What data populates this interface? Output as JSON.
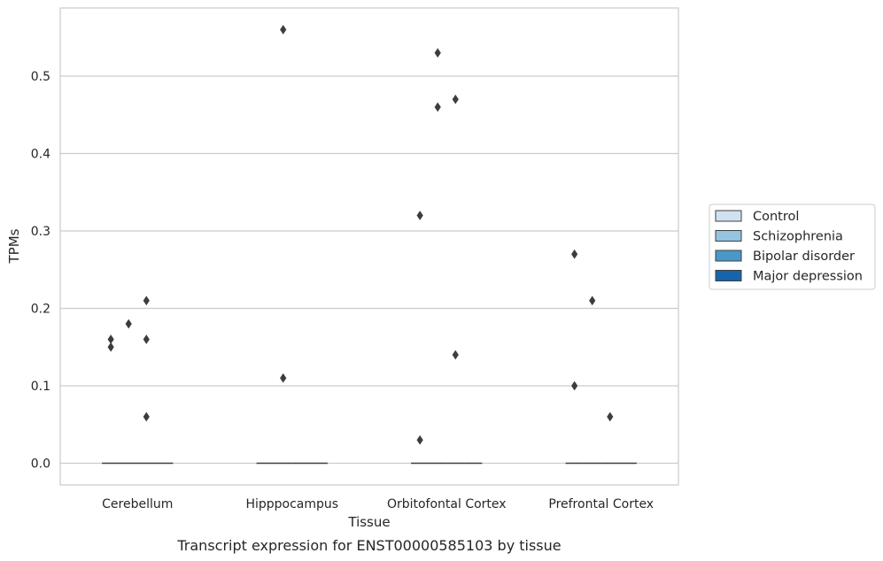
{
  "caption": "Transcript expression for ENST00000585103 by tissue",
  "chart_data": {
    "type": "boxplot",
    "title": "",
    "xlabel": "Tissue",
    "ylabel": "TPMs",
    "ylim": [
      -0.028,
      0.588
    ],
    "yticks": [
      0.0,
      0.1,
      0.2,
      0.3,
      0.4,
      0.5
    ],
    "ytick_labels": [
      "0.0",
      "0.1",
      "0.2",
      "0.3",
      "0.4",
      "0.5"
    ],
    "grid": true,
    "legend_position": "right",
    "categories": [
      "Cerebellum",
      "Hipppocampus",
      "Orbitofontal Cortex",
      "Prefrontal Cortex"
    ],
    "series": [
      {
        "name": "Control",
        "color": "#d0e1f2",
        "median": [
          0,
          0,
          0,
          0
        ],
        "outliers": [
          [
            0.15,
            0.16
          ],
          [],
          [
            0.03,
            0.32
          ],
          [
            0.1,
            0.27
          ]
        ]
      },
      {
        "name": "Schizophrenia",
        "color": "#94c4df",
        "median": [
          0,
          0,
          0,
          0
        ],
        "outliers": [
          [
            0.18
          ],
          [
            0.11,
            0.56
          ],
          [
            0.46,
            0.53
          ],
          [
            0.21
          ]
        ]
      },
      {
        "name": "Bipolar disorder",
        "color": "#4a98c9",
        "median": [
          0,
          0,
          0,
          0
        ],
        "outliers": [
          [
            0.06,
            0.16,
            0.21
          ],
          [],
          [
            0.14,
            0.47
          ],
          [
            0.06
          ]
        ]
      },
      {
        "name": "Major depression",
        "color": "#1764ab",
        "median": [
          0,
          0,
          0,
          0
        ],
        "outliers": [
          [],
          [],
          [],
          []
        ]
      }
    ]
  }
}
